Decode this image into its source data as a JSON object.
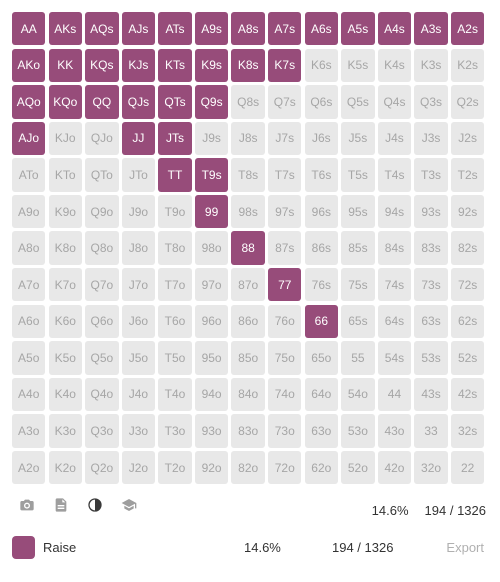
{
  "grid": {
    "rows": [
      [
        {
          "label": "AA",
          "action": "raise"
        },
        {
          "label": "AKs",
          "action": "raise"
        },
        {
          "label": "AQs",
          "action": "raise"
        },
        {
          "label": "AJs",
          "action": "raise"
        },
        {
          "label": "ATs",
          "action": "raise"
        },
        {
          "label": "A9s",
          "action": "raise"
        },
        {
          "label": "A8s",
          "action": "raise"
        },
        {
          "label": "A7s",
          "action": "raise"
        },
        {
          "label": "A6s",
          "action": "raise"
        },
        {
          "label": "A5s",
          "action": "raise"
        },
        {
          "label": "A4s",
          "action": "raise"
        },
        {
          "label": "A3s",
          "action": "raise"
        },
        {
          "label": "A2s",
          "action": "raise"
        }
      ],
      [
        {
          "label": "AKo",
          "action": "raise"
        },
        {
          "label": "KK",
          "action": "raise"
        },
        {
          "label": "KQs",
          "action": "raise"
        },
        {
          "label": "KJs",
          "action": "raise"
        },
        {
          "label": "KTs",
          "action": "raise"
        },
        {
          "label": "K9s",
          "action": "raise"
        },
        {
          "label": "K8s",
          "action": "raise"
        },
        {
          "label": "K7s",
          "action": "raise"
        },
        {
          "label": "K6s",
          "action": "none"
        },
        {
          "label": "K5s",
          "action": "none"
        },
        {
          "label": "K4s",
          "action": "none"
        },
        {
          "label": "K3s",
          "action": "none"
        },
        {
          "label": "K2s",
          "action": "none"
        }
      ],
      [
        {
          "label": "AQo",
          "action": "raise"
        },
        {
          "label": "KQo",
          "action": "raise"
        },
        {
          "label": "QQ",
          "action": "raise"
        },
        {
          "label": "QJs",
          "action": "raise"
        },
        {
          "label": "QTs",
          "action": "raise"
        },
        {
          "label": "Q9s",
          "action": "raise"
        },
        {
          "label": "Q8s",
          "action": "none"
        },
        {
          "label": "Q7s",
          "action": "none"
        },
        {
          "label": "Q6s",
          "action": "none"
        },
        {
          "label": "Q5s",
          "action": "none"
        },
        {
          "label": "Q4s",
          "action": "none"
        },
        {
          "label": "Q3s",
          "action": "none"
        },
        {
          "label": "Q2s",
          "action": "none"
        }
      ],
      [
        {
          "label": "AJo",
          "action": "raise"
        },
        {
          "label": "KJo",
          "action": "none"
        },
        {
          "label": "QJo",
          "action": "none"
        },
        {
          "label": "JJ",
          "action": "raise"
        },
        {
          "label": "JTs",
          "action": "raise"
        },
        {
          "label": "J9s",
          "action": "none"
        },
        {
          "label": "J8s",
          "action": "none"
        },
        {
          "label": "J7s",
          "action": "none"
        },
        {
          "label": "J6s",
          "action": "none"
        },
        {
          "label": "J5s",
          "action": "none"
        },
        {
          "label": "J4s",
          "action": "none"
        },
        {
          "label": "J3s",
          "action": "none"
        },
        {
          "label": "J2s",
          "action": "none"
        }
      ],
      [
        {
          "label": "ATo",
          "action": "none"
        },
        {
          "label": "KTo",
          "action": "none"
        },
        {
          "label": "QTo",
          "action": "none"
        },
        {
          "label": "JTo",
          "action": "none"
        },
        {
          "label": "TT",
          "action": "raise"
        },
        {
          "label": "T9s",
          "action": "raise"
        },
        {
          "label": "T8s",
          "action": "none"
        },
        {
          "label": "T7s",
          "action": "none"
        },
        {
          "label": "T6s",
          "action": "none"
        },
        {
          "label": "T5s",
          "action": "none"
        },
        {
          "label": "T4s",
          "action": "none"
        },
        {
          "label": "T3s",
          "action": "none"
        },
        {
          "label": "T2s",
          "action": "none"
        }
      ],
      [
        {
          "label": "A9o",
          "action": "none"
        },
        {
          "label": "K9o",
          "action": "none"
        },
        {
          "label": "Q9o",
          "action": "none"
        },
        {
          "label": "J9o",
          "action": "none"
        },
        {
          "label": "T9o",
          "action": "none"
        },
        {
          "label": "99",
          "action": "raise"
        },
        {
          "label": "98s",
          "action": "none"
        },
        {
          "label": "97s",
          "action": "none"
        },
        {
          "label": "96s",
          "action": "none"
        },
        {
          "label": "95s",
          "action": "none"
        },
        {
          "label": "94s",
          "action": "none"
        },
        {
          "label": "93s",
          "action": "none"
        },
        {
          "label": "92s",
          "action": "none"
        }
      ],
      [
        {
          "label": "A8o",
          "action": "none"
        },
        {
          "label": "K8o",
          "action": "none"
        },
        {
          "label": "Q8o",
          "action": "none"
        },
        {
          "label": "J8o",
          "action": "none"
        },
        {
          "label": "T8o",
          "action": "none"
        },
        {
          "label": "98o",
          "action": "none"
        },
        {
          "label": "88",
          "action": "raise"
        },
        {
          "label": "87s",
          "action": "none"
        },
        {
          "label": "86s",
          "action": "none"
        },
        {
          "label": "85s",
          "action": "none"
        },
        {
          "label": "84s",
          "action": "none"
        },
        {
          "label": "83s",
          "action": "none"
        },
        {
          "label": "82s",
          "action": "none"
        }
      ],
      [
        {
          "label": "A7o",
          "action": "none"
        },
        {
          "label": "K7o",
          "action": "none"
        },
        {
          "label": "Q7o",
          "action": "none"
        },
        {
          "label": "J7o",
          "action": "none"
        },
        {
          "label": "T7o",
          "action": "none"
        },
        {
          "label": "97o",
          "action": "none"
        },
        {
          "label": "87o",
          "action": "none"
        },
        {
          "label": "77",
          "action": "raise"
        },
        {
          "label": "76s",
          "action": "none"
        },
        {
          "label": "75s",
          "action": "none"
        },
        {
          "label": "74s",
          "action": "none"
        },
        {
          "label": "73s",
          "action": "none"
        },
        {
          "label": "72s",
          "action": "none"
        }
      ],
      [
        {
          "label": "A6o",
          "action": "none"
        },
        {
          "label": "K6o",
          "action": "none"
        },
        {
          "label": "Q6o",
          "action": "none"
        },
        {
          "label": "J6o",
          "action": "none"
        },
        {
          "label": "T6o",
          "action": "none"
        },
        {
          "label": "96o",
          "action": "none"
        },
        {
          "label": "86o",
          "action": "none"
        },
        {
          "label": "76o",
          "action": "none"
        },
        {
          "label": "66",
          "action": "raise"
        },
        {
          "label": "65s",
          "action": "none"
        },
        {
          "label": "64s",
          "action": "none"
        },
        {
          "label": "63s",
          "action": "none"
        },
        {
          "label": "62s",
          "action": "none"
        }
      ],
      [
        {
          "label": "A5o",
          "action": "none"
        },
        {
          "label": "K5o",
          "action": "none"
        },
        {
          "label": "Q5o",
          "action": "none"
        },
        {
          "label": "J5o",
          "action": "none"
        },
        {
          "label": "T5o",
          "action": "none"
        },
        {
          "label": "95o",
          "action": "none"
        },
        {
          "label": "85o",
          "action": "none"
        },
        {
          "label": "75o",
          "action": "none"
        },
        {
          "label": "65o",
          "action": "none"
        },
        {
          "label": "55",
          "action": "none"
        },
        {
          "label": "54s",
          "action": "none"
        },
        {
          "label": "53s",
          "action": "none"
        },
        {
          "label": "52s",
          "action": "none"
        }
      ],
      [
        {
          "label": "A4o",
          "action": "none"
        },
        {
          "label": "K4o",
          "action": "none"
        },
        {
          "label": "Q4o",
          "action": "none"
        },
        {
          "label": "J4o",
          "action": "none"
        },
        {
          "label": "T4o",
          "action": "none"
        },
        {
          "label": "94o",
          "action": "none"
        },
        {
          "label": "84o",
          "action": "none"
        },
        {
          "label": "74o",
          "action": "none"
        },
        {
          "label": "64o",
          "action": "none"
        },
        {
          "label": "54o",
          "action": "none"
        },
        {
          "label": "44",
          "action": "none"
        },
        {
          "label": "43s",
          "action": "none"
        },
        {
          "label": "42s",
          "action": "none"
        }
      ],
      [
        {
          "label": "A3o",
          "action": "none"
        },
        {
          "label": "K3o",
          "action": "none"
        },
        {
          "label": "Q3o",
          "action": "none"
        },
        {
          "label": "J3o",
          "action": "none"
        },
        {
          "label": "T3o",
          "action": "none"
        },
        {
          "label": "93o",
          "action": "none"
        },
        {
          "label": "83o",
          "action": "none"
        },
        {
          "label": "73o",
          "action": "none"
        },
        {
          "label": "63o",
          "action": "none"
        },
        {
          "label": "53o",
          "action": "none"
        },
        {
          "label": "43o",
          "action": "none"
        },
        {
          "label": "33",
          "action": "none"
        },
        {
          "label": "32s",
          "action": "none"
        }
      ],
      [
        {
          "label": "A2o",
          "action": "none"
        },
        {
          "label": "K2o",
          "action": "none"
        },
        {
          "label": "Q2o",
          "action": "none"
        },
        {
          "label": "J2o",
          "action": "none"
        },
        {
          "label": "T2o",
          "action": "none"
        },
        {
          "label": "92o",
          "action": "none"
        },
        {
          "label": "82o",
          "action": "none"
        },
        {
          "label": "72o",
          "action": "none"
        },
        {
          "label": "62o",
          "action": "none"
        },
        {
          "label": "52o",
          "action": "none"
        },
        {
          "label": "42o",
          "action": "none"
        },
        {
          "label": "32o",
          "action": "none"
        },
        {
          "label": "22",
          "action": "none"
        }
      ]
    ]
  },
  "toolbar": {
    "icons": [
      "camera-icon",
      "document-icon",
      "contrast-icon",
      "graduation-cap-icon"
    ]
  },
  "summary": {
    "percent": "14.6%",
    "combos": "194 / 1326"
  },
  "legend": {
    "label": "Raise",
    "percent": "14.6%",
    "combos": "194 / 1326",
    "export_label": "Export"
  },
  "colors": {
    "raise": "#974c7a",
    "empty": "#e8e8e8",
    "empty_text": "#a6a6a6",
    "icon": "#9e9e9e"
  }
}
